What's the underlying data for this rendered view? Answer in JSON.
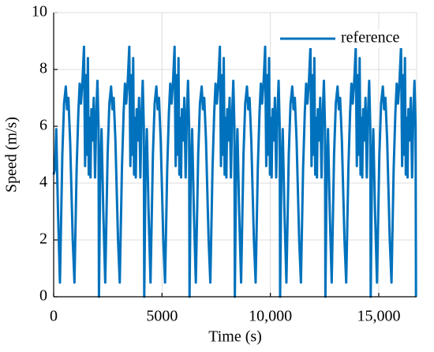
{
  "chart_data": {
    "type": "line",
    "x_label": "Time (s)",
    "y_label": "Speed (m/s)",
    "xlim": [
      0,
      16750
    ],
    "ylim": [
      0,
      10
    ],
    "xticks": [
      0,
      5000,
      {
        "value": 10000,
        "label": "10,000"
      },
      {
        "value": 15000,
        "label": "15,000"
      }
    ],
    "yticks": [
      0,
      2,
      4,
      6,
      8,
      10
    ],
    "grid": true,
    "legend": "upper right",
    "x": [
      0,
      60,
      120,
      200,
      290,
      400,
      480,
      560,
      620,
      680,
      760,
      880,
      960,
      1060,
      1140,
      1200,
      1260,
      1330,
      1400,
      1450,
      1500,
      1540,
      1580,
      1620,
      1660,
      1700,
      1740,
      1790,
      1850,
      1910,
      1970,
      2020,
      2070,
      2090,
      2150,
      2210,
      2290,
      2380,
      2490,
      2570,
      2650,
      2710,
      2770,
      2850,
      2970,
      3050,
      3150,
      3230,
      3290,
      3350,
      3420,
      3490,
      3540,
      3590,
      3630,
      3670,
      3710,
      3750,
      3790,
      3830,
      3880,
      3940,
      4000,
      4060,
      4110,
      4160,
      4180,
      4240,
      4300,
      4380,
      4470,
      4580,
      4660,
      4740,
      4800,
      4860,
      4940,
      5060,
      5140,
      5240,
      5320,
      5380,
      5440,
      5510,
      5580,
      5630,
      5680,
      5720,
      5760,
      5800,
      5840,
      5880,
      5920,
      5970,
      6030,
      6090,
      6150,
      6200,
      6250,
      6270,
      6330,
      6390,
      6470,
      6560,
      6670,
      6750,
      6830,
      6890,
      6950,
      7030,
      7150,
      7230,
      7330,
      7410,
      7470,
      7530,
      7600,
      7670,
      7720,
      7770,
      7810,
      7850,
      7890,
      7930,
      7970,
      8010,
      8060,
      8120,
      8180,
      8240,
      8290,
      8340,
      8360,
      8420,
      8480,
      8560,
      8650,
      8760,
      8840,
      8920,
      8980,
      9040,
      9120,
      9240,
      9320,
      9420,
      9500,
      9560,
      9620,
      9690,
      9760,
      9810,
      9860,
      9900,
      9940,
      9980,
      10020,
      10060,
      10100,
      10150,
      10210,
      10270,
      10330,
      10380,
      10430,
      10450,
      10510,
      10570,
      10650,
      10740,
      10850,
      10930,
      11010,
      11070,
      11130,
      11210,
      11330,
      11410,
      11510,
      11590,
      11650,
      11710,
      11780,
      11850,
      11900,
      11950,
      11990,
      12030,
      12070,
      12110,
      12150,
      12190,
      12240,
      12300,
      12360,
      12420,
      12470,
      12520,
      12540,
      12600,
      12660,
      12740,
      12830,
      12940,
      13020,
      13100,
      13160,
      13220,
      13300,
      13420,
      13500,
      13600,
      13680,
      13740,
      13800,
      13870,
      13940,
      13990,
      14040,
      14080,
      14120,
      14160,
      14200,
      14240,
      14280,
      14330,
      14390,
      14450,
      14510,
      14560,
      14610,
      14630,
      14690,
      14750,
      14830,
      14920,
      15030,
      15110,
      15190,
      15250,
      15310,
      15390,
      15510,
      15590,
      15690,
      15770,
      15830,
      15890,
      15960,
      16030,
      16080,
      16130,
      16170,
      16210,
      16250,
      16290,
      16330,
      16370,
      16420,
      16480,
      16540,
      16600,
      16650,
      16700,
      16720
    ],
    "series": [
      {
        "name": "reference",
        "color": "#0072bd",
        "values": [
          4.3,
          4.5,
          5.9,
          3,
          0.5,
          5,
          6.8,
          7.4,
          6.6,
          7.0,
          5.5,
          2,
          0.5,
          4.5,
          6.5,
          7.5,
          6.8,
          7.6,
          8.8,
          4.6,
          7.8,
          5,
          8.4,
          4.3,
          6.3,
          4.2,
          6.6,
          5.5,
          7.0,
          4.2,
          6.5,
          7.6,
          6.0,
          0,
          4.5,
          5.9,
          3,
          0.5,
          5,
          6.8,
          7.4,
          6.6,
          7.0,
          5.5,
          2,
          0.5,
          4.5,
          6.5,
          7.5,
          6.8,
          7.6,
          8.8,
          4.6,
          7.8,
          5,
          8.4,
          4.3,
          6.3,
          4.2,
          6.6,
          5.5,
          7.0,
          4.2,
          6.5,
          7.6,
          6.0,
          0,
          4.5,
          5.9,
          3,
          0.5,
          5,
          6.8,
          7.4,
          6.6,
          7.0,
          5.5,
          2,
          0.5,
          4.5,
          6.5,
          7.5,
          6.8,
          7.6,
          8.8,
          4.6,
          7.8,
          5,
          8.4,
          4.3,
          6.3,
          4.2,
          6.6,
          5.5,
          7.0,
          4.2,
          6.5,
          7.6,
          6.0,
          0,
          4.5,
          5.9,
          3,
          0.5,
          5,
          6.8,
          7.4,
          6.6,
          7.0,
          5.5,
          2,
          0.5,
          4.5,
          6.5,
          7.5,
          6.8,
          7.6,
          8.8,
          4.6,
          7.8,
          5,
          8.4,
          4.3,
          6.3,
          4.2,
          6.6,
          5.5,
          7.0,
          4.2,
          6.5,
          7.6,
          6.0,
          0,
          4.5,
          5.9,
          3,
          0.5,
          5,
          6.8,
          7.4,
          6.6,
          7.0,
          5.5,
          2,
          0.5,
          4.5,
          6.5,
          7.5,
          6.8,
          7.6,
          8.8,
          4.6,
          7.8,
          5,
          8.4,
          4.3,
          6.3,
          4.2,
          6.6,
          5.5,
          7.0,
          4.2,
          6.5,
          7.6,
          6.0,
          0,
          4.5,
          5.9,
          3,
          0.5,
          5,
          6.8,
          7.4,
          6.6,
          7.0,
          5.5,
          2,
          0.5,
          4.5,
          6.5,
          7.5,
          6.8,
          7.6,
          8.8,
          4.6,
          7.8,
          5,
          8.4,
          4.3,
          6.3,
          4.2,
          6.6,
          5.5,
          7.0,
          4.2,
          6.5,
          7.6,
          6.0,
          0,
          4.5,
          5.9,
          3,
          0.5,
          5,
          6.8,
          7.4,
          6.6,
          7.0,
          5.5,
          2,
          0.5,
          4.5,
          6.5,
          7.5,
          6.8,
          7.6,
          8.8,
          4.6,
          7.8,
          5,
          8.4,
          4.3,
          6.3,
          4.2,
          6.6,
          5.5,
          7.0,
          4.2,
          6.5,
          7.6,
          6.0,
          0,
          4.5,
          5.9,
          3,
          0.5,
          5,
          6.8,
          7.4,
          6.6,
          7.0,
          5.5,
          2,
          0.5,
          4.5,
          6.5,
          7.5,
          6.8,
          7.6,
          8.8,
          4.6,
          7.8,
          5,
          8.4,
          4.3,
          6.3,
          4.2,
          6.6,
          5.5,
          7.0,
          4.2,
          6.5,
          7.6,
          6.0,
          0
        ]
      }
    ]
  }
}
